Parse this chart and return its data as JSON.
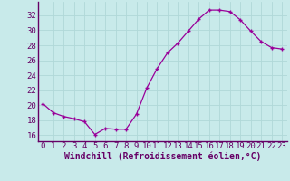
{
  "x": [
    0,
    1,
    2,
    3,
    4,
    5,
    6,
    7,
    8,
    9,
    10,
    11,
    12,
    13,
    14,
    15,
    16,
    17,
    18,
    19,
    20,
    21,
    22,
    23
  ],
  "y": [
    20.2,
    19.0,
    18.5,
    18.2,
    17.8,
    16.1,
    16.9,
    16.8,
    16.8,
    18.8,
    22.3,
    24.9,
    27.0,
    28.3,
    29.9,
    31.5,
    32.7,
    32.7,
    32.5,
    31.4,
    29.9,
    28.5,
    27.7,
    27.5
  ],
  "line_color": "#990099",
  "marker": "+",
  "bg_color": "#c8eaea",
  "grid_color": "#b0d8d8",
  "ylabel_ticks": [
    16,
    18,
    20,
    22,
    24,
    26,
    28,
    30,
    32
  ],
  "xtick_labels": [
    "0",
    "1",
    "2",
    "3",
    "4",
    "5",
    "6",
    "7",
    "8",
    "9",
    "10",
    "11",
    "12",
    "13",
    "14",
    "15",
    "16",
    "17",
    "18",
    "19",
    "20",
    "21",
    "22",
    "23"
  ],
  "xlim": [
    -0.5,
    23.5
  ],
  "ylim": [
    15.2,
    33.8
  ],
  "xlabel": "Windchill (Refroidissement éolien,°C)",
  "tick_fontsize": 6.5,
  "label_fontsize": 7.0,
  "spine_color": "#660066",
  "tick_color": "#660066"
}
